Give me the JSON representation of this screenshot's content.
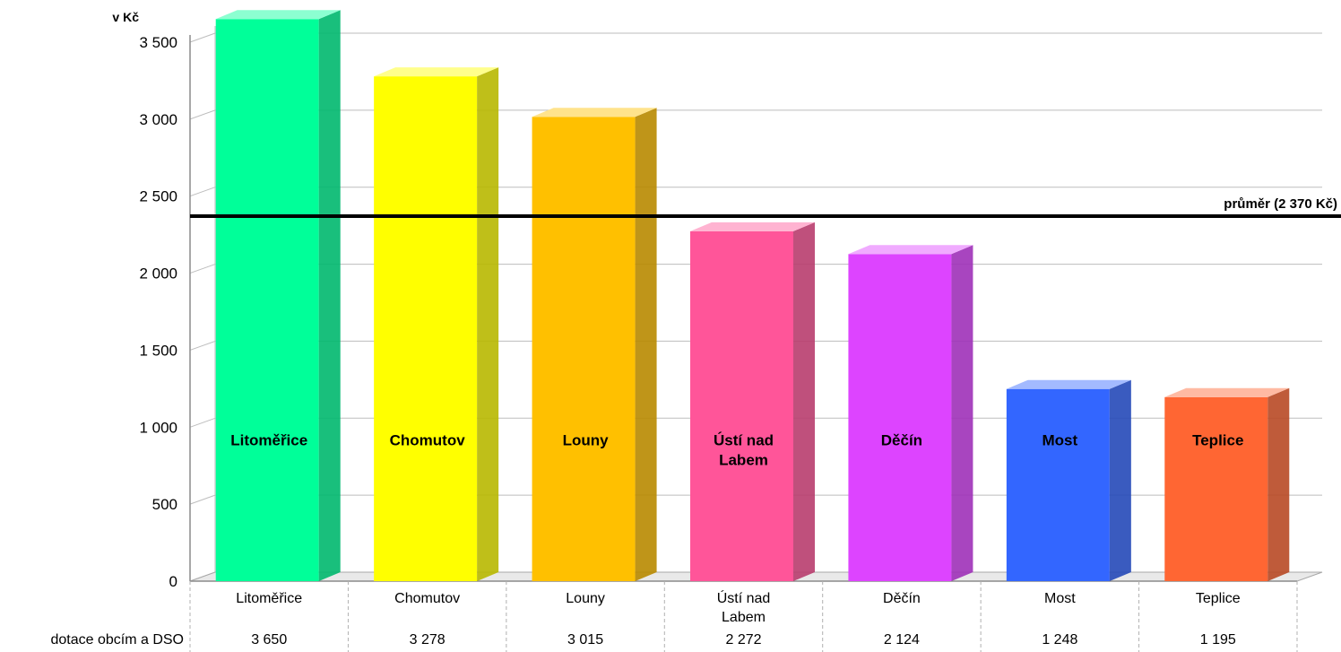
{
  "chart_data": {
    "type": "bar",
    "ylabel": "v Kč",
    "ylim": [
      0,
      3650
    ],
    "yticks": [
      "0",
      "500",
      "1 000",
      "1 500",
      "2 000",
      "2 500",
      "3 000",
      "3 500"
    ],
    "ytick_values": [
      0,
      500,
      1000,
      1500,
      2000,
      2500,
      3000,
      3500
    ],
    "grid": true,
    "categories": [
      "Litoměřice",
      "Chomutov",
      "Louny",
      "Ústí nad Labem",
      "Děčín",
      "Most",
      "Teplice"
    ],
    "category_lines": [
      [
        "Litoměřice"
      ],
      [
        "Chomutov"
      ],
      [
        "Louny"
      ],
      [
        "Ústí nad",
        "Labem"
      ],
      [
        "Děčín"
      ],
      [
        "Most"
      ],
      [
        "Teplice"
      ]
    ],
    "bar_label_lines": [
      [
        "Litoměřice"
      ],
      [
        "Chomutov"
      ],
      [
        "Louny"
      ],
      [
        "Ústí  nad",
        "Labem"
      ],
      [
        "Děčín"
      ],
      [
        "Most"
      ],
      [
        "Teplice"
      ]
    ],
    "series": [
      {
        "name": "dotace obcím a DSO",
        "values": [
          3650,
          3278,
          3015,
          2272,
          2124,
          1248,
          1195
        ],
        "value_labels": [
          "3 650",
          "3 278",
          "3 015",
          "2 272",
          "2 124",
          "1 248",
          "1 195"
        ]
      }
    ],
    "colors": [
      "#00ff99",
      "#ffff00",
      "#ffc000",
      "#ff5599",
      "#dd44ff",
      "#3366ff",
      "#ff6633"
    ],
    "reference_line": {
      "value": 2370,
      "label": "průměr (2 370 Kč)"
    }
  }
}
